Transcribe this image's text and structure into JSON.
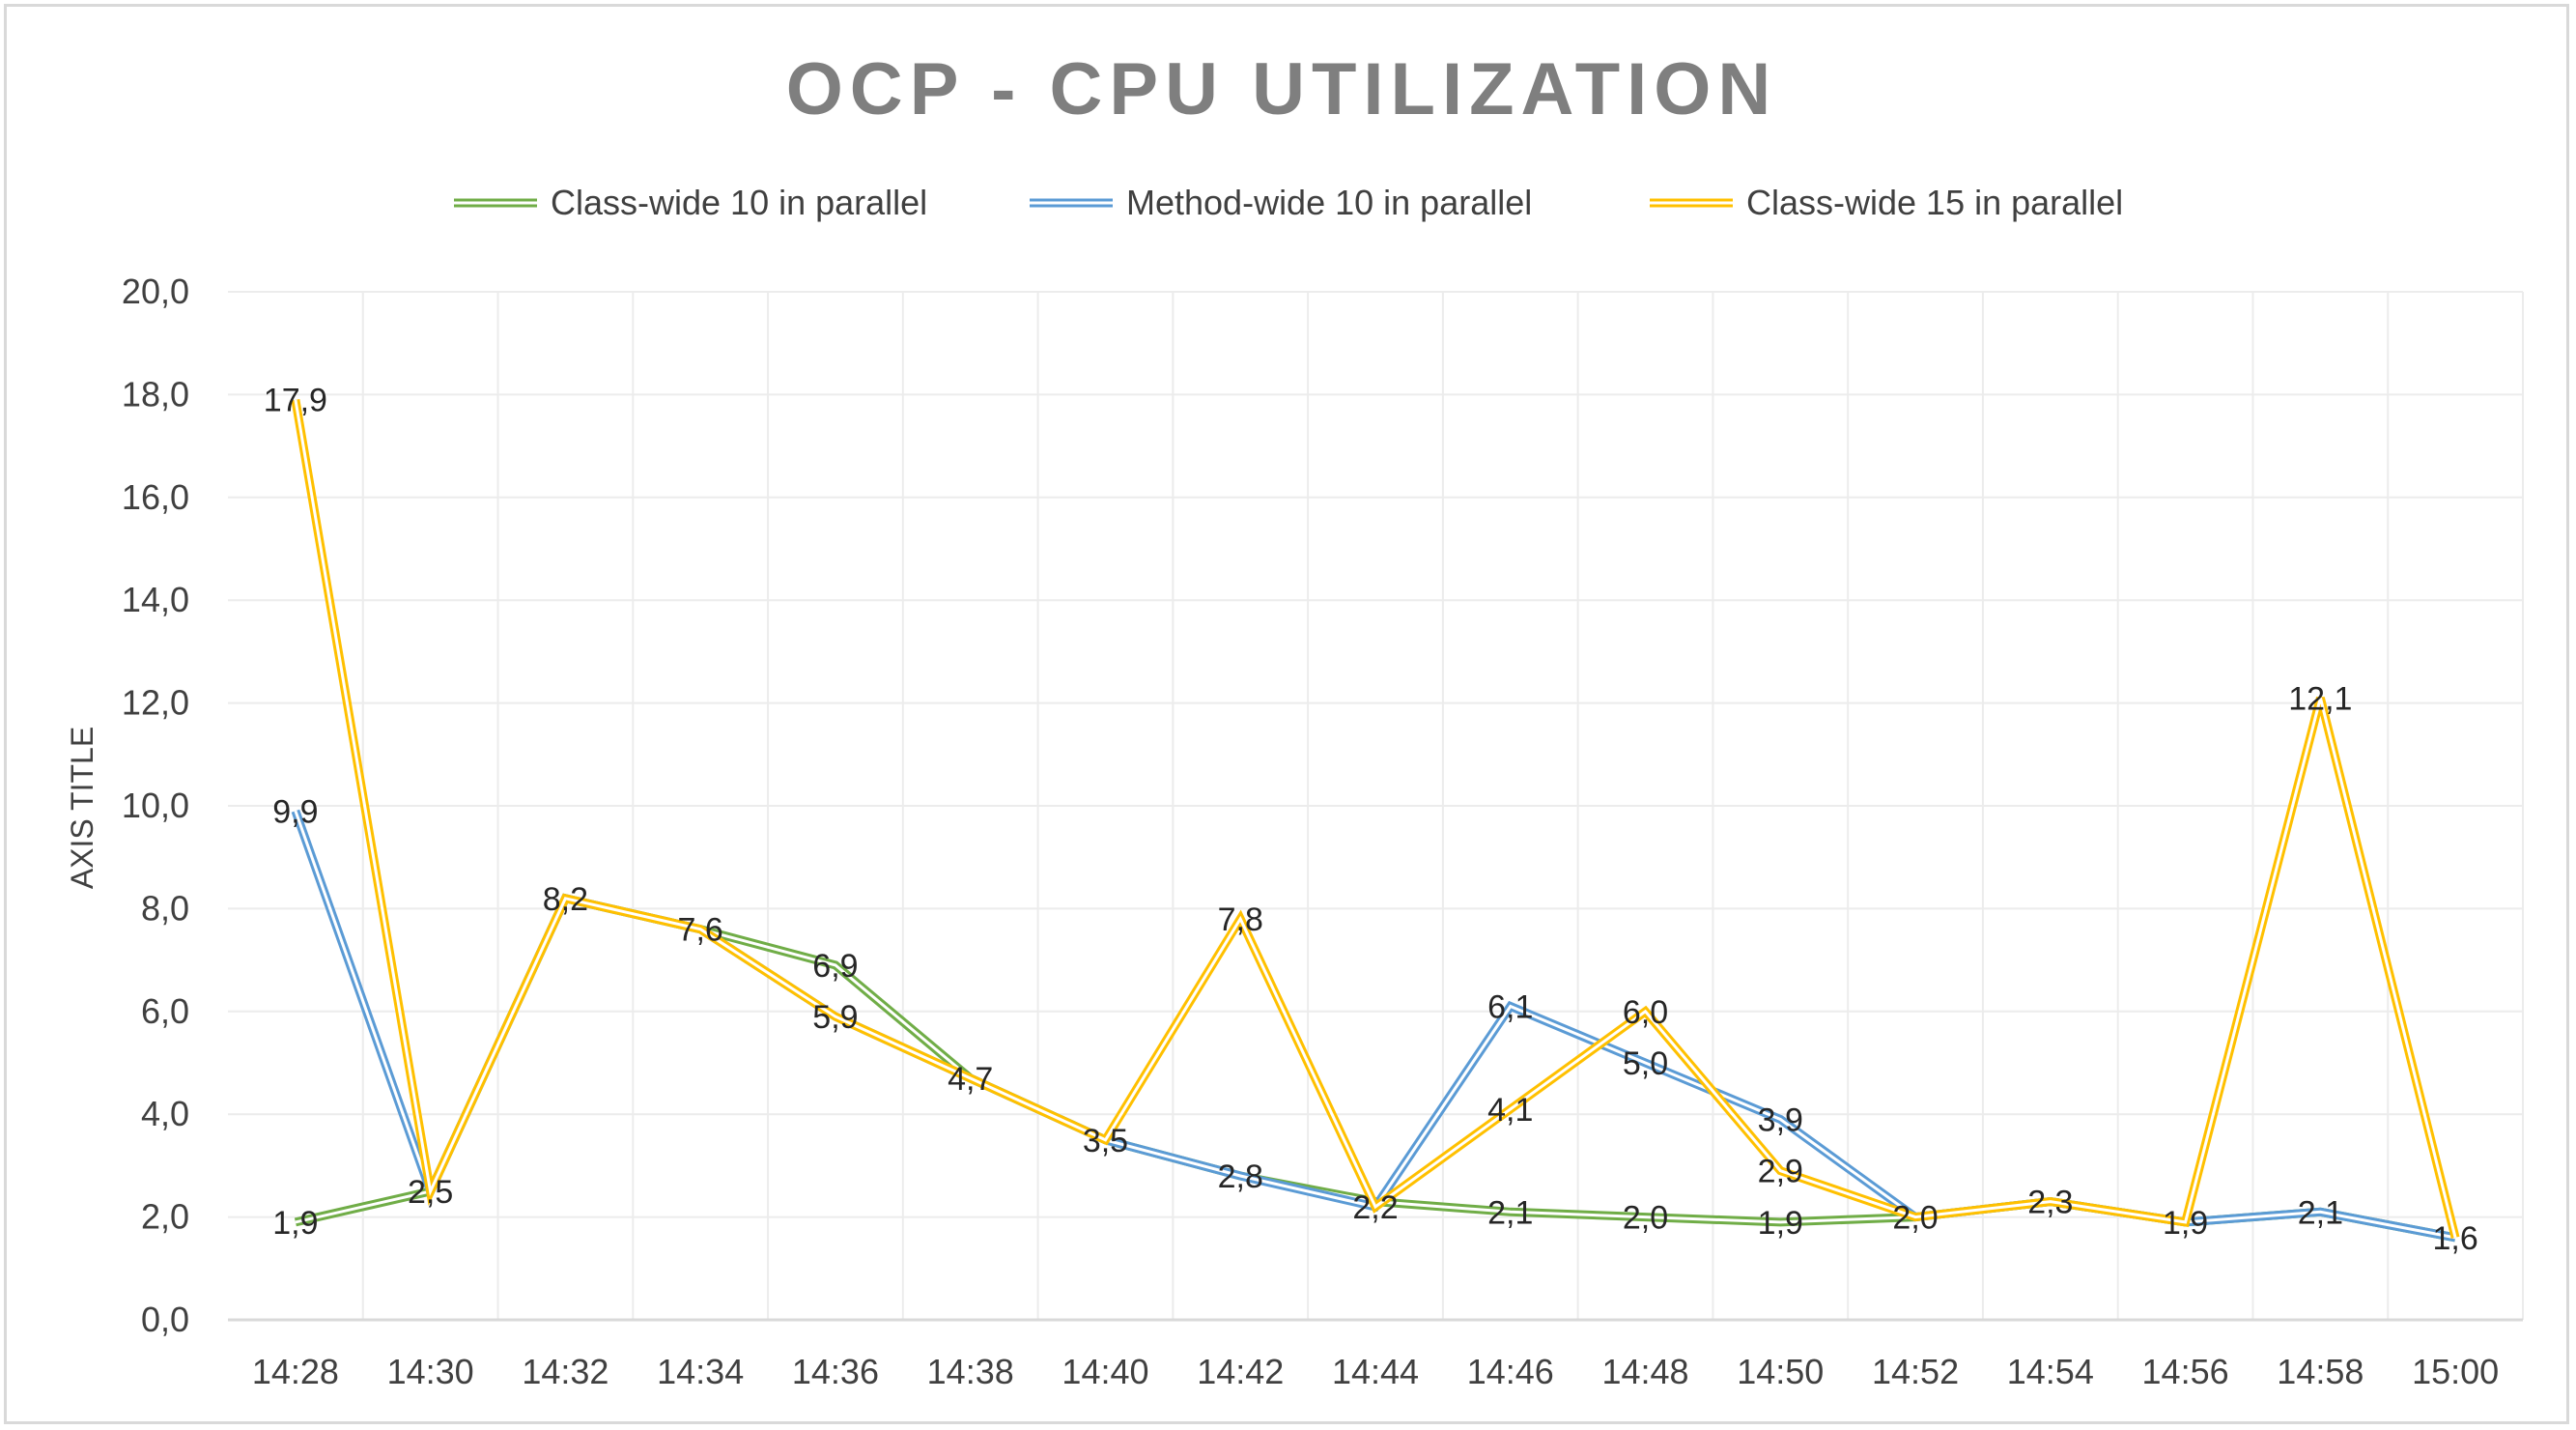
{
  "chart_data": {
    "type": "line",
    "title": "OCP - CPU UTILIZATION",
    "ylabel": "AXIS TITLE",
    "xlabel": "",
    "ylim": [
      0,
      20
    ],
    "ytick_labels": [
      "0,0",
      "2,0",
      "4,0",
      "6,0",
      "8,0",
      "10,0",
      "12,0",
      "14,0",
      "16,0",
      "18,0",
      "20,0"
    ],
    "categories": [
      "14:28",
      "14:30",
      "14:32",
      "14:34",
      "14:36",
      "14:38",
      "14:40",
      "14:42",
      "14:44",
      "14:46",
      "14:48",
      "14:50",
      "14:52",
      "14:54",
      "14:56",
      "14:58",
      "15:00"
    ],
    "grid": "vertical and horizontal",
    "legend_position": "top",
    "series": [
      {
        "name": "Class-wide 10 in parallel",
        "color": "#70ad47",
        "values": [
          1.9,
          2.5,
          8.2,
          7.6,
          6.9,
          4.7,
          3.5,
          2.8,
          2.3,
          2.1,
          2.0,
          1.9,
          2.0,
          2.3,
          1.9,
          2.1,
          1.6
        ]
      },
      {
        "name": "Method-wide 10 in parallel",
        "color": "#5b9bd5",
        "values": [
          9.9,
          2.5,
          8.2,
          7.6,
          5.9,
          4.7,
          3.5,
          2.8,
          2.2,
          6.1,
          5.0,
          3.9,
          2.0,
          2.3,
          1.9,
          2.1,
          1.6
        ]
      },
      {
        "name": "Class-wide 15 in parallel",
        "color": "#ffc000",
        "values": [
          17.9,
          2.5,
          8.2,
          7.6,
          5.9,
          4.7,
          3.5,
          7.8,
          2.2,
          4.1,
          6.0,
          2.9,
          2.0,
          2.3,
          1.9,
          12.1,
          1.6
        ]
      }
    ],
    "data_labels": [
      {
        "category": "14:28",
        "y": 17.9,
        "text": "17,9"
      },
      {
        "category": "14:28",
        "y": 9.9,
        "text": "9,9"
      },
      {
        "category": "14:28",
        "y": 1.9,
        "text": "1,9"
      },
      {
        "category": "14:30",
        "y": 2.5,
        "text": "2,5"
      },
      {
        "category": "14:32",
        "y": 8.2,
        "text": "8,2"
      },
      {
        "category": "14:34",
        "y": 7.6,
        "text": "7,6"
      },
      {
        "category": "14:36",
        "y": 6.9,
        "text": "6,9"
      },
      {
        "category": "14:36",
        "y": 5.9,
        "text": "5,9"
      },
      {
        "category": "14:38",
        "y": 4.7,
        "text": "4,7"
      },
      {
        "category": "14:40",
        "y": 3.5,
        "text": "3,5"
      },
      {
        "category": "14:42",
        "y": 7.8,
        "text": "7,8"
      },
      {
        "category": "14:42",
        "y": 2.8,
        "text": "2,8"
      },
      {
        "category": "14:44",
        "y": 2.2,
        "text": "2,2"
      },
      {
        "category": "14:46",
        "y": 6.1,
        "text": "6,1"
      },
      {
        "category": "14:46",
        "y": 4.1,
        "text": "4,1"
      },
      {
        "category": "14:46",
        "y": 2.1,
        "text": "2,1"
      },
      {
        "category": "14:48",
        "y": 6.0,
        "text": "6,0"
      },
      {
        "category": "14:48",
        "y": 5.0,
        "text": "5,0"
      },
      {
        "category": "14:48",
        "y": 2.0,
        "text": "2,0"
      },
      {
        "category": "14:50",
        "y": 3.9,
        "text": "3,9"
      },
      {
        "category": "14:50",
        "y": 2.9,
        "text": "2,9"
      },
      {
        "category": "14:50",
        "y": 1.9,
        "text": "1,9"
      },
      {
        "category": "14:52",
        "y": 2.0,
        "text": "2,0"
      },
      {
        "category": "14:54",
        "y": 2.3,
        "text": "2,3"
      },
      {
        "category": "14:56",
        "y": 1.9,
        "text": "1,9"
      },
      {
        "category": "14:58",
        "y": 12.1,
        "text": "12,1"
      },
      {
        "category": "14:58",
        "y": 2.1,
        "text": "2,1"
      },
      {
        "category": "15:00",
        "y": 1.6,
        "text": "1,6"
      }
    ],
    "colors": {
      "title": "#7f7f7f",
      "text": "#404040",
      "gridline": "#ececec",
      "axis_line": "#d9d9d9",
      "frame": "#d9d9d9"
    }
  }
}
